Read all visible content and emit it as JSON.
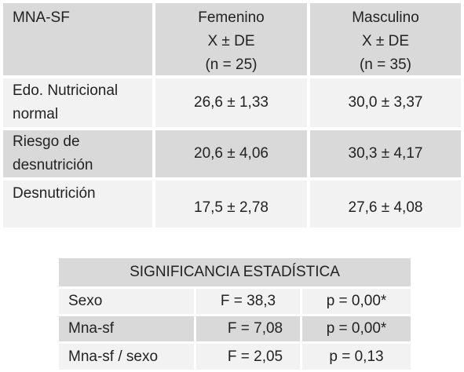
{
  "table1": {
    "header": {
      "col0": "MNA-SF",
      "col1": [
        "Femenino",
        "X ± DE",
        "(n = 25)"
      ],
      "col2": [
        "Masculino",
        "X ± DE",
        "(n = 35)"
      ]
    },
    "rows": [
      {
        "label": [
          "Edo. Nutricional",
          "normal"
        ],
        "fem": "26,6 ± 1,33",
        "masc": "30,0 ± 3,37"
      },
      {
        "label": [
          "Riesgo de",
          "desnutrición"
        ],
        "fem": "20,6 ± 4,06",
        "masc": "30,3 ± 4,17"
      },
      {
        "label": [
          "Desnutrición"
        ],
        "fem": "17,5 ± 2,78",
        "masc": "27,6 ± 4,08"
      }
    ]
  },
  "table2": {
    "title": "SIGNIFICANCIA ESTADÍSTICA",
    "rows": [
      {
        "label": "Sexo",
        "f": "F = 38,3",
        "p": "p = 0,00*"
      },
      {
        "label": "Mna-sf",
        "f": "F = 7,08",
        "p": "p = 0,00*"
      },
      {
        "label": "Mna-sf / sexo",
        "f": "F = 2,05",
        "p": "p = 0,13"
      }
    ]
  }
}
